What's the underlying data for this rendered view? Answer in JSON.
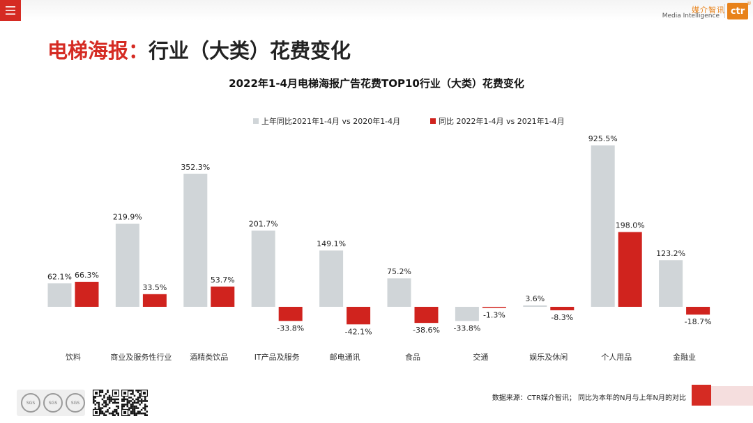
{
  "topbar": {
    "menu_icon": "hamburger-icon",
    "brand_cn": "媒介智讯",
    "brand_en": "Media Intelligence",
    "logo_text": "ctr",
    "logo_reg": "®",
    "accent": "#d52b23",
    "brand_orange": "#e8821a"
  },
  "headline": {
    "prefix": "电梯海报：",
    "rest": "行业（大类）花费变化"
  },
  "footer": {
    "source": "数据来源：CTR媒介智讯；  同比为本年的N月与上年N月的对比",
    "cert_labels": [
      "SGS",
      "SGS",
      "SGS"
    ]
  },
  "chart_data": {
    "type": "bar",
    "title": "2022年1-4月电梯海报广告花费TOP10行业（大类）花费变化",
    "categories": [
      "饮料",
      "商业及服务性行业",
      "酒精类饮品",
      "IT产品及服务",
      "邮电通讯",
      "食品",
      "交通",
      "娱乐及休闲",
      "个人用品",
      "金融业"
    ],
    "series": [
      {
        "name": "上年同比2021年1-4月 vs 2020年1-4月",
        "color": "#d0d5d8",
        "values": [
          62.1,
          219.9,
          352.3,
          201.7,
          149.1,
          75.2,
          -33.8,
          3.6,
          925.5,
          123.2
        ],
        "labels": [
          "62.1%",
          "219.9%",
          "352.3%",
          "201.7%",
          "149.1%",
          "75.2%",
          "-33.8%",
          "3.6%",
          "925.5%",
          "123.2%"
        ]
      },
      {
        "name": "同比 2022年1-4月  vs 2021年1-4月",
        "color": "#d0231e",
        "values": [
          66.3,
          33.5,
          53.7,
          -33.8,
          -42.1,
          -38.6,
          -1.3,
          -8.3,
          198.0,
          -18.7
        ],
        "labels": [
          "66.3%",
          "33.5%",
          "53.7%",
          "-33.8%",
          "-42.1%",
          "-38.6%",
          "-1.3%",
          "-8.3%",
          "198.0%",
          "-18.7%"
        ]
      }
    ],
    "legend_position": "top-center",
    "xlabel": "",
    "ylabel": "",
    "grid": false
  }
}
